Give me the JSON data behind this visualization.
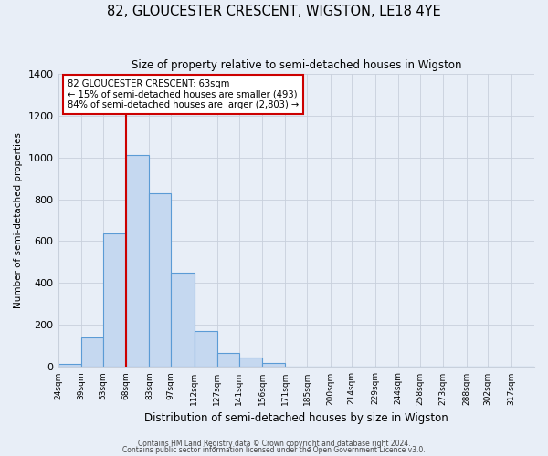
{
  "title": "82, GLOUCESTER CRESCENT, WIGSTON, LE18 4YE",
  "subtitle": "Size of property relative to semi-detached houses in Wigston",
  "xlabel": "Distribution of semi-detached houses by size in Wigston",
  "ylabel": "Number of semi-detached properties",
  "bar_labels": [
    "24sqm",
    "39sqm",
    "53sqm",
    "68sqm",
    "83sqm",
    "97sqm",
    "112sqm",
    "127sqm",
    "141sqm",
    "156sqm",
    "171sqm",
    "185sqm",
    "200sqm",
    "214sqm",
    "229sqm",
    "244sqm",
    "258sqm",
    "273sqm",
    "288sqm",
    "302sqm",
    "317sqm"
  ],
  "bar_values": [
    15,
    140,
    635,
    1010,
    830,
    450,
    170,
    65,
    45,
    20,
    0,
    0,
    0,
    0,
    0,
    0,
    0,
    0,
    0,
    0,
    0
  ],
  "bar_color": "#c5d8f0",
  "bar_edge_color": "#5b9bd5",
  "ylim": [
    0,
    1400
  ],
  "yticks": [
    0,
    200,
    400,
    600,
    800,
    1000,
    1200,
    1400
  ],
  "property_line_label": "82 GLOUCESTER CRESCENT: 63sqm",
  "annotation_smaller": "← 15% of semi-detached houses are smaller (493)",
  "annotation_larger": "84% of semi-detached houses are larger (2,803) →",
  "annotation_box_color": "#ffffff",
  "annotation_box_edge": "#cc0000",
  "vline_color": "#cc0000",
  "vline_x": 68,
  "grid_color": "#c8d0dc",
  "bg_color": "#e8eef7",
  "footer1": "Contains HM Land Registry data © Crown copyright and database right 2024.",
  "footer2": "Contains public sector information licensed under the Open Government Licence v3.0."
}
